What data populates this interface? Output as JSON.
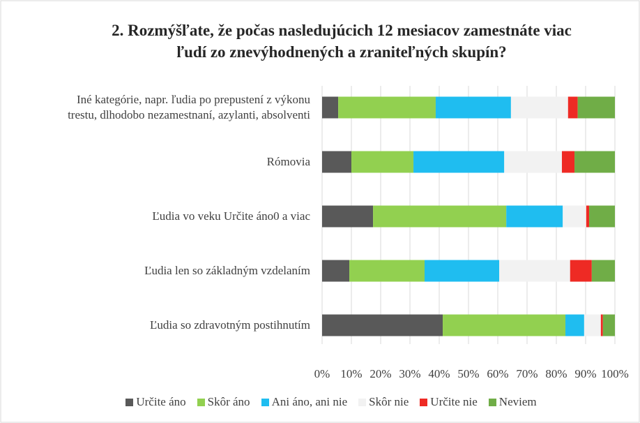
{
  "chart_data": {
    "type": "stacked_bar_horizontal",
    "title": "2. Rozmýšľate, že počas nasledujúcich 12 mesiacov zamestnáte viac\nľudí zo znevýhodnených a zraniteľných skupín?",
    "categories": [
      "Iné kategórie, napr. ľudia po prepustení z výkonu\ntrestu, dlhodobo nezamestnaní, azylanti, absolventi",
      "Rómovia",
      "Ľudia vo veku Určite áno0 a viac",
      "Ľudia len so základným vzdelaním",
      "Ľudia so zdravotným postihnutím"
    ],
    "series": [
      {
        "name": "Určite áno",
        "color": "#595959",
        "values": [
          5.5,
          10,
          17.4,
          9.3,
          41.2
        ]
      },
      {
        "name": "Skôr áno",
        "color": "#92d050",
        "values": [
          33.3,
          21.2,
          45.5,
          25.7,
          41.9
        ]
      },
      {
        "name": "Ani áno, ani nie",
        "color": "#1fbdf0",
        "values": [
          25.7,
          31,
          19.3,
          25.5,
          6.4
        ]
      },
      {
        "name": "Skôr nie",
        "color": "#f2f2f2",
        "values": [
          19.5,
          19.7,
          8.0,
          24.2,
          5.7
        ]
      },
      {
        "name": "Určite nie",
        "color": "#ee2a24",
        "values": [
          3.3,
          4.3,
          1,
          7.4,
          0.7
        ]
      },
      {
        "name": "Neviem",
        "color": "#70ad47",
        "values": [
          12.7,
          13.8,
          8.8,
          7.9,
          4.1
        ]
      }
    ],
    "xlim": [
      0,
      100
    ],
    "xticks": [
      {
        "value": 0,
        "label": "0%"
      },
      {
        "value": 10,
        "label": "10%"
      },
      {
        "value": 20,
        "label": "20%"
      },
      {
        "value": 30,
        "label": "30%"
      },
      {
        "value": 40,
        "label": "40%"
      },
      {
        "value": 50,
        "label": "50%"
      },
      {
        "value": 60,
        "label": "60%"
      },
      {
        "value": 70,
        "label": "70%"
      },
      {
        "value": 80,
        "label": "80%"
      },
      {
        "value": 90,
        "label": "90%"
      },
      {
        "value": 100,
        "label": "100%"
      }
    ],
    "grid": true,
    "legend": "bottom"
  }
}
